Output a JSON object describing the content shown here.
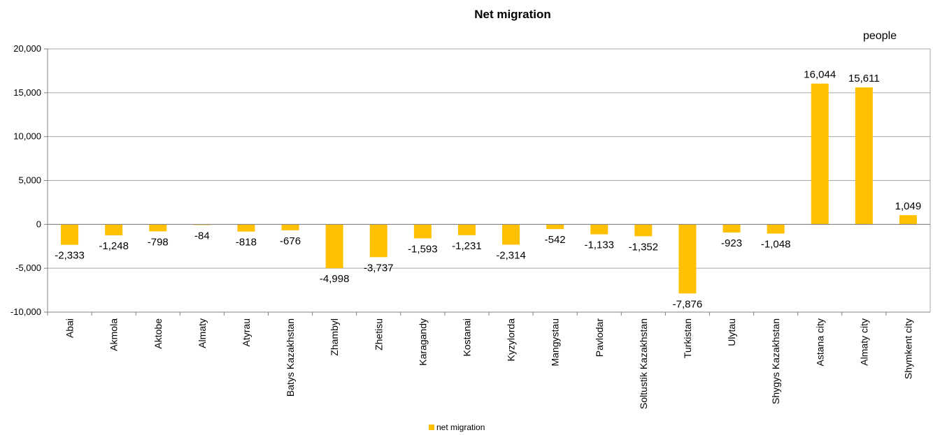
{
  "chart_data": {
    "type": "bar",
    "title": "Net migration",
    "unit_label": "people",
    "xlabel": "",
    "ylabel": "",
    "ylim": [
      -10000,
      20000
    ],
    "ytick_step": 5000,
    "ytick_labels": [
      "-10,000",
      "-5,000",
      "0",
      "5,000",
      "10,000",
      "15,000",
      "20,000"
    ],
    "grid": true,
    "legend_position": "bottom",
    "bar_color": "#FFC000",
    "categories": [
      "Abai",
      "Akmola",
      "Aktobe",
      "Almaty",
      "Atyrau",
      "Batys Kazakhstan",
      "Zhambyl",
      "Zhetisu",
      "Karagandy",
      "Kostanai",
      "Kyzylorda",
      "Mangystau",
      "Pavlodar",
      "Soltustik Kazakhstan",
      "Turkistan",
      "Ulytau",
      "Shygys Kazakhstan",
      "Astana city",
      "Almaty city",
      "Shymkent city"
    ],
    "series": [
      {
        "name": "net migration",
        "values": [
          -2333,
          -1248,
          -798,
          -84,
          -818,
          -676,
          -4998,
          -3737,
          -1593,
          -1231,
          -2314,
          -542,
          -1133,
          -1352,
          -7876,
          -923,
          -1048,
          16044,
          15611,
          1049
        ],
        "labels": [
          "-2,333",
          "-1,248",
          "-798",
          "-84",
          "-818",
          "-676",
          "-4,998",
          "-3,737",
          "-1,593",
          "-1,231",
          "-2,314",
          "-542",
          "-1,133",
          "-1,352",
          "-7,876",
          "-923",
          "-1,048",
          "16,044",
          "15,611",
          "1,049"
        ]
      }
    ]
  }
}
